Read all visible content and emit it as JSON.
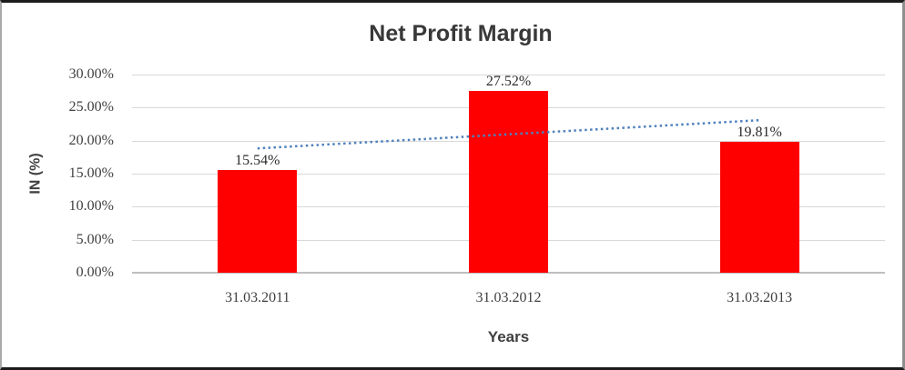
{
  "chart_data": {
    "type": "bar",
    "title": "Net Profit Margin",
    "xlabel": "Years",
    "ylabel": "IN (%)",
    "categories": [
      "31.03.2011",
      "31.03.2012",
      "31.03.2013"
    ],
    "values": [
      15.54,
      27.52,
      19.81
    ],
    "data_labels": [
      "15.54%",
      "27.52%",
      "19.81%"
    ],
    "yticks": [
      {
        "value": 0,
        "label": "0.00%"
      },
      {
        "value": 5,
        "label": "5.00%"
      },
      {
        "value": 10,
        "label": "10.00%"
      },
      {
        "value": 15,
        "label": "15.00%"
      },
      {
        "value": 20,
        "label": "20.00%"
      },
      {
        "value": 25,
        "label": "25.00%"
      },
      {
        "value": 30,
        "label": "30.00%"
      }
    ],
    "ylim": [
      0,
      30
    ],
    "grid": true,
    "legend": "none",
    "bar_color": "#FE0000",
    "gridline_color": "#D9D9D9",
    "trendline": {
      "type": "linear",
      "style": "dotted",
      "color": "#4F81BD",
      "start_value": 18.82,
      "end_value": 23.09
    }
  }
}
